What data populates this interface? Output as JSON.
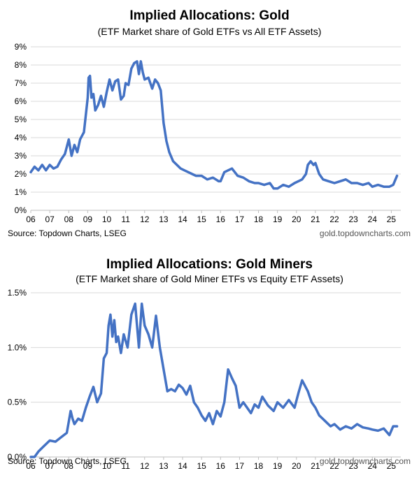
{
  "chart_data": [
    {
      "type": "line",
      "title": "Implied Allocations: Gold",
      "subtitle": "(ETF Market share of Gold ETFs vs All ETF Assets)",
      "source": "Source: Topdown Charts, LSEG",
      "site": "gold.topdowncharts.com",
      "x_tick_labels": [
        "06",
        "07",
        "08",
        "09",
        "10",
        "11",
        "12",
        "13",
        "14",
        "15",
        "16",
        "17",
        "18",
        "19",
        "20",
        "21",
        "22",
        "23",
        "24",
        "25"
      ],
      "y_tick_labels": [
        "0%",
        "1%",
        "2%",
        "3%",
        "4%",
        "5%",
        "6%",
        "7%",
        "8%",
        "9%"
      ],
      "ylim": [
        0,
        9
      ],
      "xlim": [
        2006.0,
        2025.5
      ],
      "grid": true,
      "line_color": "#4472C4",
      "series": [
        {
          "x": [
            2006.0,
            2006.2,
            2006.4,
            2006.6,
            2006.8,
            2007.0,
            2007.2,
            2007.4,
            2007.6,
            2007.8,
            2008.0,
            2008.15,
            2008.3,
            2008.45,
            2008.6,
            2008.8,
            2009.0,
            2009.05,
            2009.12,
            2009.2,
            2009.3,
            2009.4,
            2009.55,
            2009.7,
            2009.85,
            2010.0,
            2010.15,
            2010.3,
            2010.45,
            2010.6,
            2010.75,
            2010.9,
            2011.0,
            2011.15,
            2011.3,
            2011.45,
            2011.6,
            2011.7,
            2011.8,
            2011.9,
            2012.0,
            2012.2,
            2012.4,
            2012.55,
            2012.7,
            2012.85,
            2013.0,
            2013.15,
            2013.3,
            2013.5,
            2013.7,
            2013.9,
            2014.1,
            2014.3,
            2014.5,
            2014.7,
            2015.0,
            2015.3,
            2015.6,
            2015.9,
            2016.0,
            2016.2,
            2016.4,
            2016.6,
            2016.9,
            2017.2,
            2017.5,
            2017.8,
            2018.0,
            2018.3,
            2018.6,
            2018.8,
            2019.0,
            2019.3,
            2019.6,
            2019.9,
            2020.1,
            2020.3,
            2020.5,
            2020.6,
            2020.75,
            2020.9,
            2021.0,
            2021.2,
            2021.4,
            2021.7,
            2022.0,
            2022.3,
            2022.6,
            2022.9,
            2023.2,
            2023.5,
            2023.8,
            2024.0,
            2024.3,
            2024.6,
            2024.9,
            2025.1,
            2025.3
          ],
          "y": [
            2.1,
            2.4,
            2.2,
            2.5,
            2.2,
            2.5,
            2.3,
            2.4,
            2.8,
            3.1,
            3.9,
            3.0,
            3.6,
            3.2,
            3.9,
            4.3,
            6.2,
            7.3,
            7.4,
            6.2,
            6.4,
            5.5,
            5.8,
            6.3,
            5.7,
            6.5,
            7.2,
            6.6,
            7.1,
            7.2,
            6.1,
            6.3,
            7.0,
            6.9,
            7.8,
            8.1,
            8.2,
            7.5,
            8.2,
            7.6,
            7.2,
            7.3,
            6.7,
            7.2,
            7.0,
            6.6,
            4.8,
            3.8,
            3.2,
            2.7,
            2.5,
            2.3,
            2.2,
            2.1,
            2.0,
            1.9,
            1.9,
            1.7,
            1.8,
            1.6,
            1.6,
            2.1,
            2.2,
            2.3,
            1.9,
            1.8,
            1.6,
            1.5,
            1.5,
            1.4,
            1.5,
            1.2,
            1.2,
            1.4,
            1.3,
            1.5,
            1.6,
            1.7,
            2.0,
            2.5,
            2.7,
            2.5,
            2.6,
            2.0,
            1.7,
            1.6,
            1.5,
            1.6,
            1.7,
            1.5,
            1.5,
            1.4,
            1.5,
            1.3,
            1.4,
            1.3,
            1.3,
            1.4,
            1.9
          ]
        }
      ]
    },
    {
      "type": "line",
      "title": "Implied Allocations: Gold Miners",
      "subtitle": "(ETF Market share of Gold Miner ETFs vs Equity ETF Assets)",
      "source": "Source: Topdown Charts, LSEG",
      "site": "gold.topdowncharts.com",
      "x_tick_labels": [
        "06",
        "07",
        "08",
        "09",
        "10",
        "11",
        "12",
        "13",
        "14",
        "15",
        "16",
        "17",
        "18",
        "19",
        "20",
        "21",
        "22",
        "23",
        "24",
        "25"
      ],
      "y_tick_labels": [
        "0.0%",
        "0.5%",
        "1.0%",
        "1.5%"
      ],
      "ylim": [
        0,
        1.5
      ],
      "xlim": [
        2006.0,
        2025.5
      ],
      "grid": true,
      "line_color": "#4472C4",
      "series": [
        {
          "x": [
            2006.0,
            2006.2,
            2006.4,
            2006.7,
            2007.0,
            2007.3,
            2007.6,
            2007.9,
            2008.1,
            2008.2,
            2008.3,
            2008.5,
            2008.7,
            2008.9,
            2009.1,
            2009.3,
            2009.5,
            2009.7,
            2009.85,
            2010.0,
            2010.1,
            2010.2,
            2010.3,
            2010.4,
            2010.5,
            2010.6,
            2010.75,
            2010.9,
            2011.1,
            2011.3,
            2011.5,
            2011.7,
            2011.85,
            2012.0,
            2012.2,
            2012.4,
            2012.6,
            2012.8,
            2013.0,
            2013.2,
            2013.4,
            2013.6,
            2013.8,
            2014.0,
            2014.2,
            2014.4,
            2014.6,
            2014.8,
            2015.0,
            2015.2,
            2015.4,
            2015.6,
            2015.8,
            2016.0,
            2016.2,
            2016.4,
            2016.6,
            2016.8,
            2017.0,
            2017.2,
            2017.4,
            2017.6,
            2017.8,
            2018.0,
            2018.2,
            2018.5,
            2018.8,
            2019.0,
            2019.3,
            2019.6,
            2019.9,
            2020.1,
            2020.3,
            2020.6,
            2020.8,
            2021.0,
            2021.2,
            2021.5,
            2021.8,
            2022.0,
            2022.3,
            2022.6,
            2022.9,
            2023.2,
            2023.5,
            2023.8,
            2024.0,
            2024.3,
            2024.6,
            2024.9,
            2025.1,
            2025.3
          ],
          "y": [
            0.0,
            0.0,
            0.05,
            0.1,
            0.15,
            0.14,
            0.18,
            0.22,
            0.42,
            0.35,
            0.3,
            0.35,
            0.33,
            0.45,
            0.55,
            0.64,
            0.5,
            0.58,
            0.9,
            0.95,
            1.2,
            1.3,
            1.1,
            1.25,
            1.05,
            1.1,
            0.95,
            1.12,
            1.0,
            1.3,
            1.4,
            1.0,
            1.4,
            1.2,
            1.12,
            1.0,
            1.29,
            1.0,
            0.8,
            0.6,
            0.62,
            0.6,
            0.66,
            0.63,
            0.57,
            0.65,
            0.5,
            0.45,
            0.38,
            0.33,
            0.4,
            0.3,
            0.42,
            0.37,
            0.5,
            0.8,
            0.72,
            0.65,
            0.45,
            0.5,
            0.45,
            0.4,
            0.48,
            0.45,
            0.55,
            0.47,
            0.42,
            0.5,
            0.45,
            0.52,
            0.45,
            0.58,
            0.7,
            0.6,
            0.5,
            0.45,
            0.38,
            0.33,
            0.28,
            0.3,
            0.25,
            0.28,
            0.26,
            0.3,
            0.27,
            0.26,
            0.25,
            0.24,
            0.26,
            0.2,
            0.28,
            0.28
          ]
        }
      ]
    }
  ]
}
